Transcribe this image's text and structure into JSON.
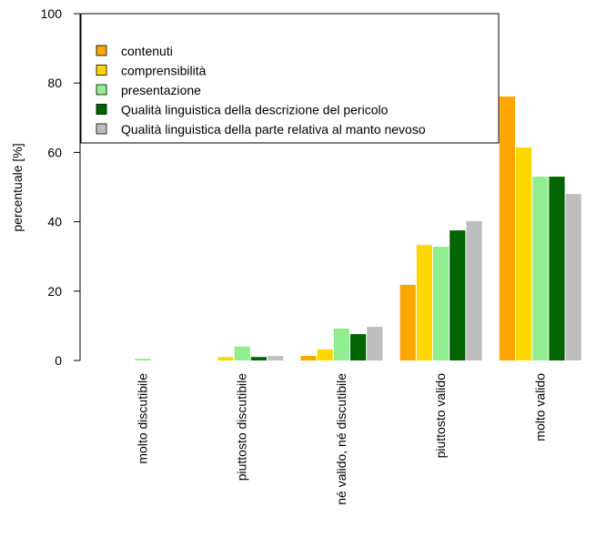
{
  "chart_data": {
    "type": "bar",
    "title": "",
    "xlabel": "",
    "ylabel": "percentuale [%]",
    "ylim": [
      0,
      100
    ],
    "yticks": [
      0,
      20,
      40,
      60,
      80,
      100
    ],
    "grid": false,
    "legend_position": "top-left",
    "categories": [
      "molto discutibile",
      "piuttosto discutibile",
      "né valido, né discutibile",
      "piuttosto valido",
      "molto valido"
    ],
    "series": [
      {
        "name": "contenuti",
        "color": "#FFA500",
        "values": [
          0,
          0,
          1.3,
          21.8,
          76.1
        ]
      },
      {
        "name": "comprensibilità",
        "color": "#FFD700",
        "values": [
          0,
          1.0,
          3.2,
          33.3,
          61.4
        ]
      },
      {
        "name": "presentazione",
        "color": "#90EE90",
        "values": [
          0.5,
          4.0,
          9.2,
          32.8,
          53.0
        ]
      },
      {
        "name": "Qualità linguistica della descrizione del pericolo",
        "color": "#006400",
        "values": [
          0,
          1.0,
          7.6,
          37.5,
          53.0
        ]
      },
      {
        "name": "Qualità linguistica della parte relativa al manto nevoso",
        "color": "#BEBEBE",
        "values": [
          0,
          1.3,
          9.7,
          40.2,
          48.0
        ]
      }
    ]
  }
}
